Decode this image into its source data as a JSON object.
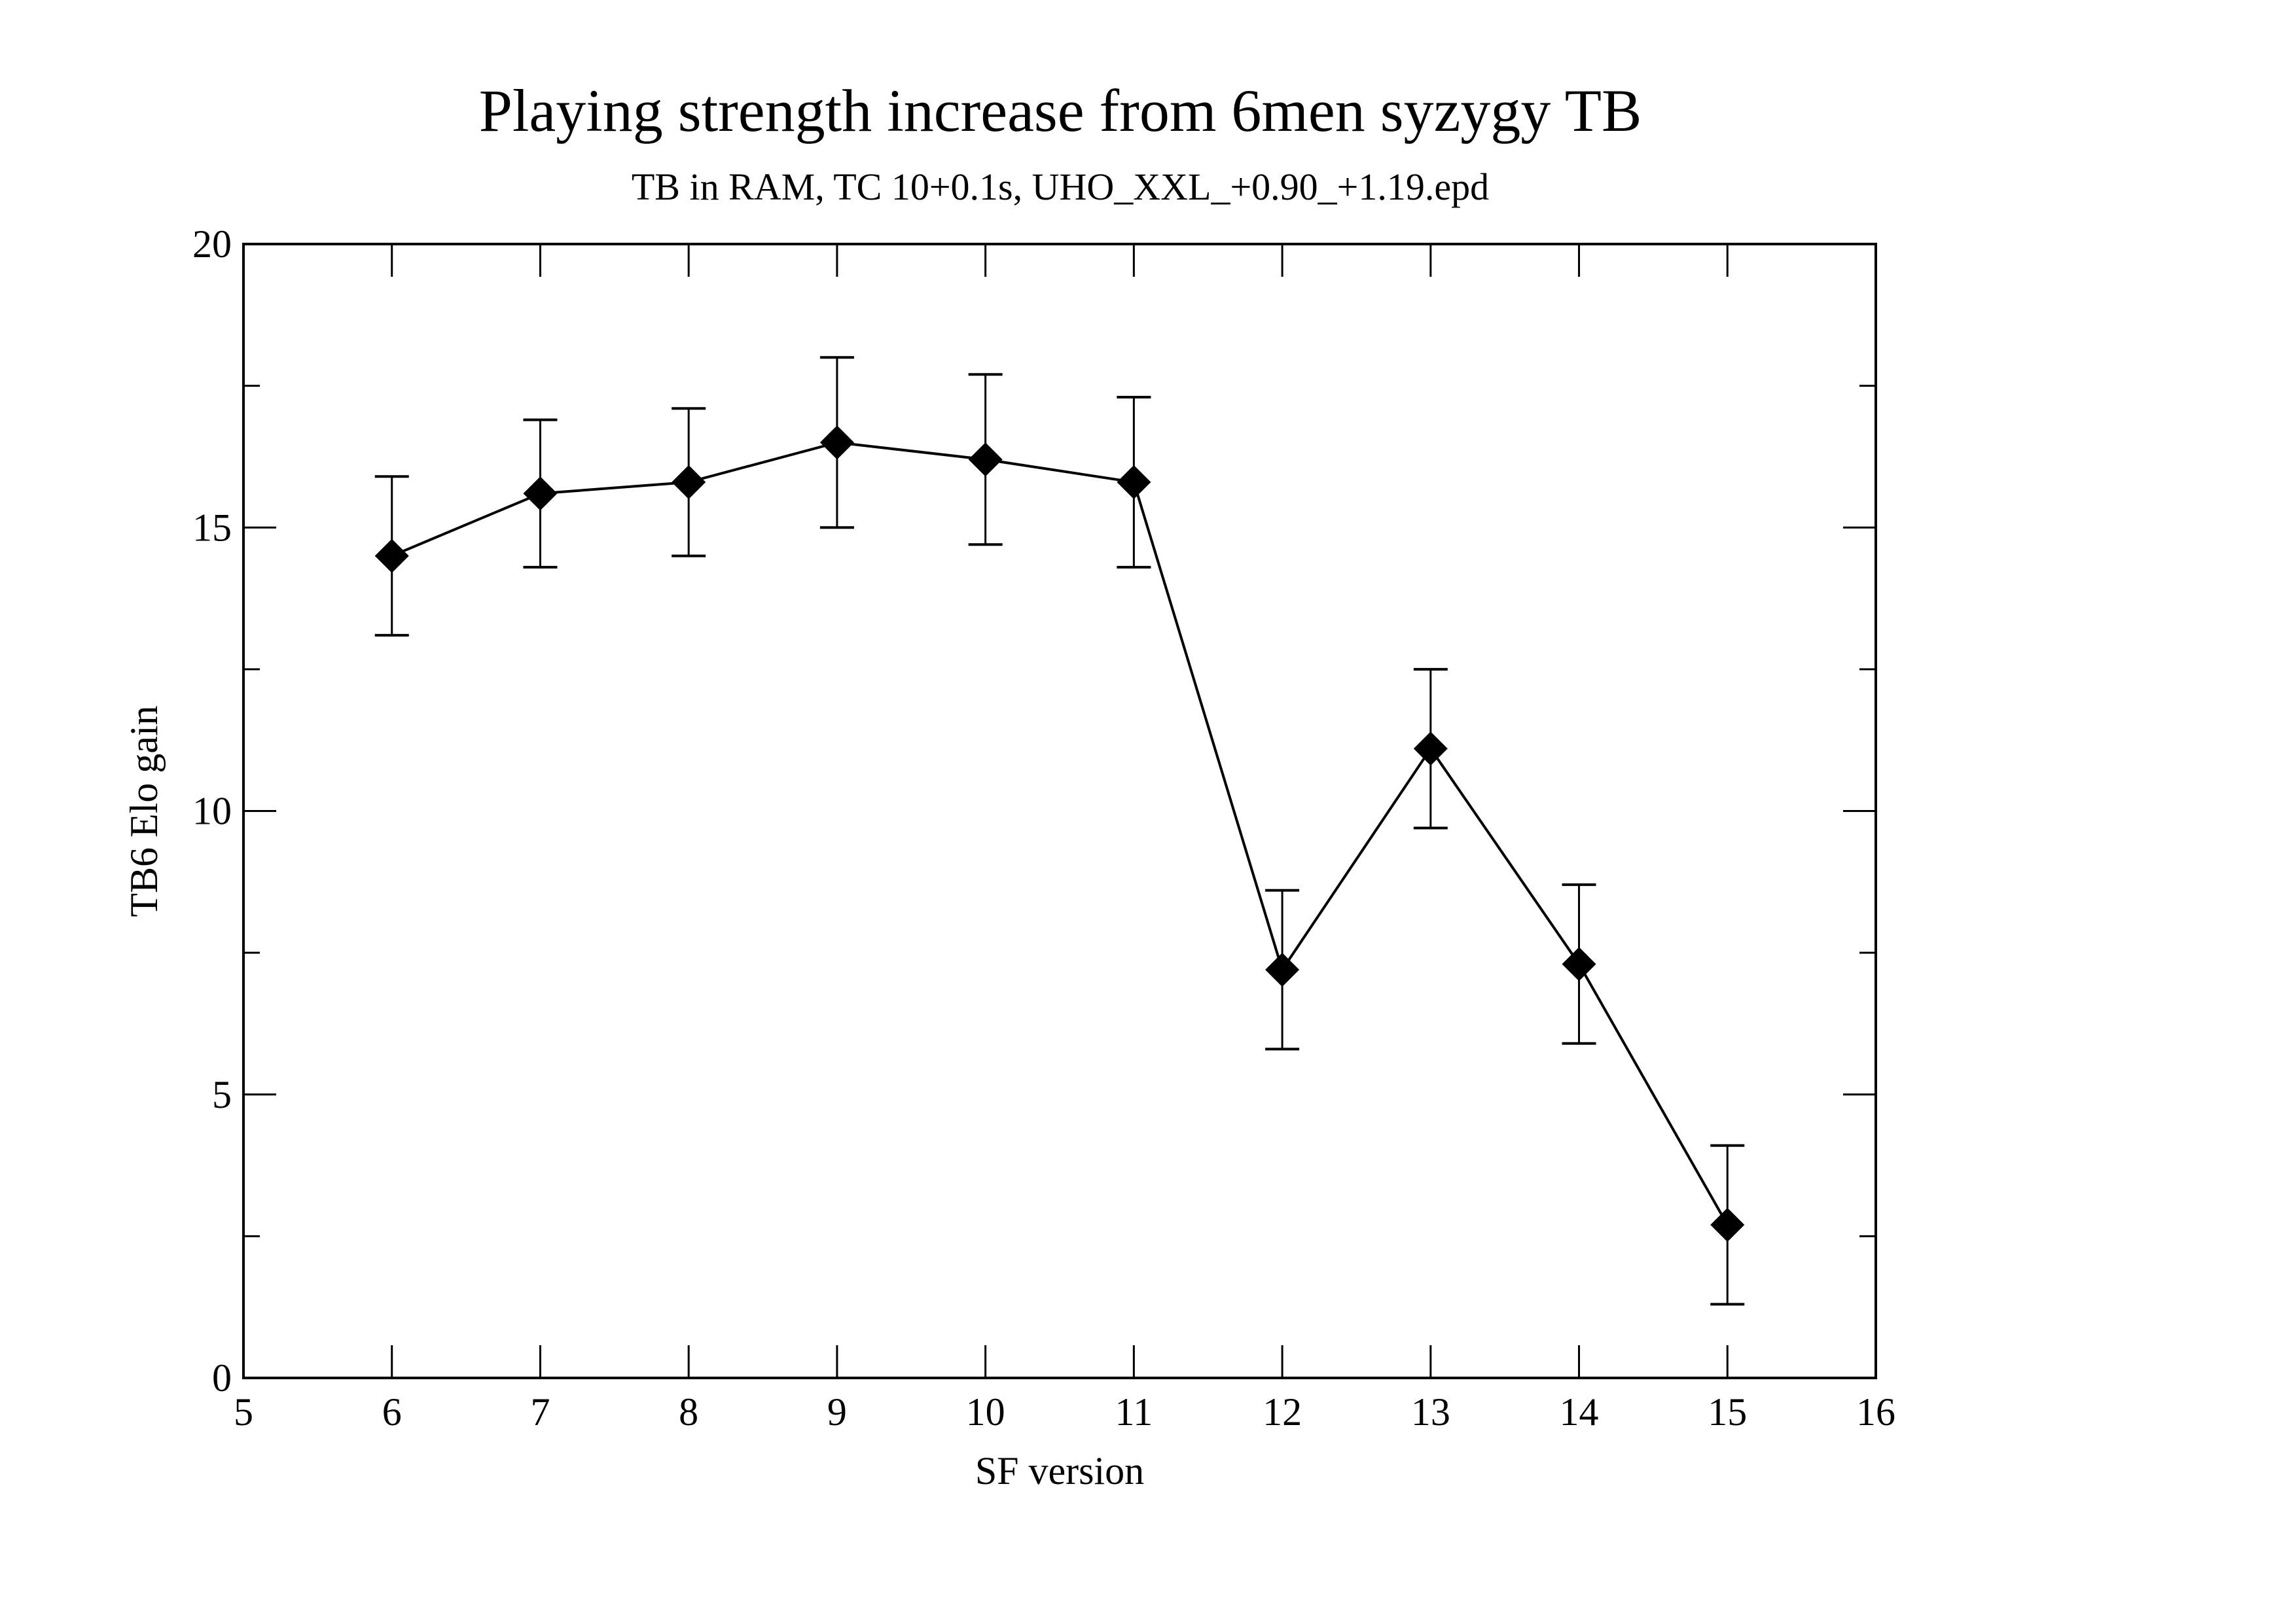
{
  "chart_data": {
    "type": "line",
    "title": "Playing strength increase from 6men syzygy TB",
    "subtitle": "TB in RAM, TC 10+0.1s, UHO_XXL_+0.90_+1.19.epd",
    "xlabel": "SF version",
    "ylabel": "TB6 Elo gain",
    "xlim": [
      5,
      16
    ],
    "ylim": [
      0,
      20
    ],
    "x_ticks": [
      5,
      6,
      7,
      8,
      9,
      10,
      11,
      12,
      13,
      14,
      15,
      16
    ],
    "x_tick_labels": [
      "5",
      "6",
      "7",
      "8",
      "9",
      "10",
      "11",
      "12",
      "13",
      "14",
      "15",
      "16"
    ],
    "y_ticks": [
      0,
      5,
      10,
      15,
      20
    ],
    "y_tick_labels": [
      "0",
      "5",
      "10",
      "15",
      "20"
    ],
    "y_minor_ticks": [
      2.5,
      7.5,
      12.5,
      17.5
    ],
    "grid": false,
    "marker": "diamond",
    "colors": {
      "line": "#000000",
      "marker": "#000000",
      "frame": "#000000",
      "background": "#ffffff"
    },
    "series": [
      {
        "name": "TB6 Elo gain",
        "x": [
          6,
          7,
          8,
          9,
          10,
          11,
          12,
          13,
          14,
          15
        ],
        "y": [
          14.5,
          15.6,
          15.8,
          16.5,
          16.2,
          15.8,
          7.2,
          11.1,
          7.3,
          2.7
        ],
        "error_low": [
          13.1,
          14.3,
          14.5,
          15.0,
          14.7,
          14.3,
          5.8,
          9.7,
          5.9,
          1.3
        ],
        "error_high": [
          15.9,
          16.9,
          17.1,
          18.0,
          17.7,
          17.3,
          8.6,
          12.5,
          8.7,
          4.1
        ]
      }
    ]
  }
}
